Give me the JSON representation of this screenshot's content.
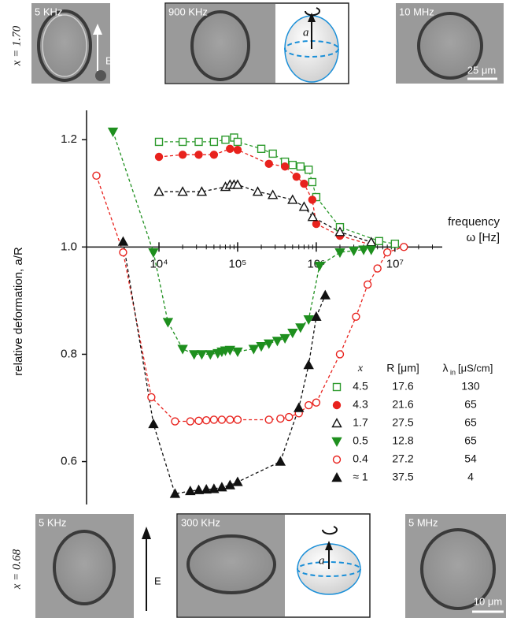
{
  "chart_data": {
    "type": "scatter",
    "y_label": "relative deformation, a/R",
    "x_label": "frequency",
    "x_unit": "ω [Hz]",
    "xscale": "log",
    "xlim": [
      1200,
      40000000
    ],
    "xticks": [
      {
        "value": 10000,
        "label": "10⁴"
      },
      {
        "value": 100000,
        "label": "10⁵"
      },
      {
        "value": 1000000,
        "label": "10⁶"
      },
      {
        "value": 10000000,
        "label": "10⁷"
      }
    ],
    "ylim": [
      0.52,
      1.24
    ],
    "yticks": [
      0.6,
      0.8,
      {
        "value": 1,
        "label": "1.0"
      },
      1.2
    ],
    "legend_headers": {
      "x": "x",
      "R": "R [μm]",
      "lambda": "λ",
      "lambda_sub": "in",
      "lambda_unit": "[μS/cm]"
    },
    "series": [
      {
        "name": "4.5",
        "R": "17.6",
        "lambda_in": "130",
        "color": "#2e9b2e",
        "marker": "square",
        "filled": false,
        "x": [
          10000,
          20000,
          32000,
          50000,
          70000,
          90000,
          100000,
          200000,
          280000,
          400000,
          500000,
          630000,
          800000,
          890000,
          1000000,
          2000000,
          6300000,
          10000000
        ],
        "values": [
          1.196,
          1.196,
          1.196,
          1.196,
          1.2,
          1.204,
          1.196,
          1.183,
          1.174,
          1.159,
          1.153,
          1.15,
          1.144,
          1.121,
          1.093,
          1.037,
          1.011,
          1.006
        ]
      },
      {
        "name": "4.3",
        "R": "21.6",
        "lambda_in": "65",
        "color": "#e8221d",
        "marker": "circle",
        "filled": true,
        "x": [
          10000,
          20000,
          32000,
          50000,
          80000,
          100000,
          250000,
          400000,
          560000,
          700000,
          890000,
          1000000,
          2000000,
          5000000
        ],
        "values": [
          1.168,
          1.172,
          1.172,
          1.172,
          1.183,
          1.181,
          1.155,
          1.15,
          1.131,
          1.118,
          1.088,
          1.043,
          1.021,
          1.004
        ]
      },
      {
        "name": "1.7",
        "R": "27.5",
        "lambda_in": "65",
        "color": "#111111",
        "marker": "triangle-up",
        "filled": false,
        "x": [
          10000,
          20000,
          35000,
          70000,
          80000,
          90000,
          100000,
          180000,
          280000,
          500000,
          700000,
          900000,
          2000000,
          5000000
        ],
        "values": [
          1.103,
          1.103,
          1.103,
          1.112,
          1.116,
          1.116,
          1.116,
          1.103,
          1.097,
          1.088,
          1.075,
          1.056,
          1.028,
          1.009
        ]
      },
      {
        "name": "0.5",
        "R": "12.8",
        "lambda_in": "65",
        "color": "#1e8f1e",
        "marker": "triangle-down",
        "filled": true,
        "x": [
          2600,
          8500,
          13000,
          20000,
          28000,
          35000,
          45000,
          56000,
          63000,
          70000,
          80000,
          100000,
          160000,
          200000,
          250000,
          320000,
          400000,
          500000,
          630000,
          800000,
          1100000,
          2000000,
          3000000,
          4000000,
          5000000
        ],
        "values": [
          1.215,
          0.99,
          0.86,
          0.81,
          0.8,
          0.8,
          0.8,
          0.802,
          0.805,
          0.807,
          0.808,
          0.805,
          0.81,
          0.815,
          0.82,
          0.825,
          0.83,
          0.84,
          0.85,
          0.865,
          0.965,
          0.99,
          0.993,
          0.995,
          0.995
        ]
      },
      {
        "name": "0.4",
        "R": "27.2",
        "lambda_in": "54",
        "color": "#e8221d",
        "marker": "circle",
        "filled": false,
        "x": [
          1600,
          3500,
          8000,
          16000,
          25000,
          32000,
          40000,
          50000,
          63000,
          80000,
          100000,
          250000,
          350000,
          450000,
          600000,
          800000,
          1000000,
          2000000,
          3200000,
          4500000,
          6000000,
          8000000,
          13000000
        ],
        "values": [
          1.133,
          0.99,
          0.72,
          0.675,
          0.675,
          0.676,
          0.677,
          0.678,
          0.678,
          0.678,
          0.678,
          0.678,
          0.68,
          0.683,
          0.69,
          0.705,
          0.71,
          0.8,
          0.87,
          0.93,
          0.96,
          0.99,
          1.0
        ]
      },
      {
        "name": "≈ 1",
        "R": "37.5",
        "lambda_in": "4",
        "color": "#111111",
        "marker": "triangle-up",
        "filled": true,
        "x": [
          3500,
          8500,
          16000,
          25000,
          32000,
          40000,
          50000,
          63000,
          80000,
          100000,
          350000,
          600000,
          800000,
          1000000,
          1300000
        ],
        "values": [
          1.01,
          0.67,
          0.54,
          0.545,
          0.547,
          0.548,
          0.549,
          0.552,
          0.556,
          0.562,
          0.6,
          0.7,
          0.78,
          0.87,
          0.91
        ]
      }
    ]
  },
  "panels": {
    "top": {
      "row_label": "x = 1.70",
      "images": [
        "5 KHz",
        "900 KHz",
        "10 MHz"
      ],
      "field_label": "E",
      "axis_label": "a",
      "scale_bar": "25 μm"
    },
    "bottom": {
      "row_label": "x = 0.68",
      "images": [
        "5 KHz",
        "300 KHz",
        "5 MHz"
      ],
      "field_label": "E",
      "axis_label": "a",
      "scale_bar": "10 μm"
    }
  }
}
